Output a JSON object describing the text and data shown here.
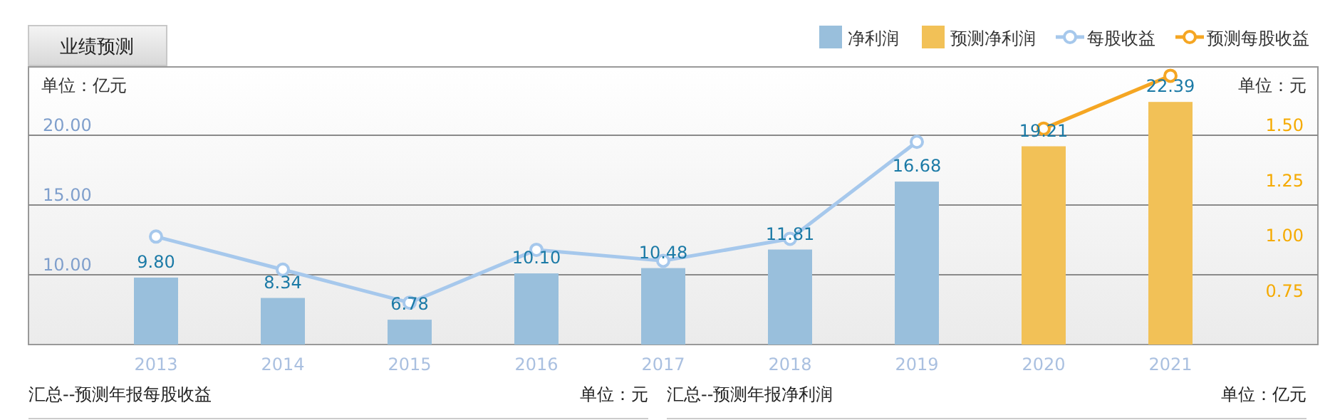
{
  "chart_data": {
    "type": "bar",
    "title": "业绩预测",
    "ylabel": "单位：亿元",
    "y2label": "单位：元",
    "categories": [
      "2013",
      "2014",
      "2015",
      "2016",
      "2017",
      "2018",
      "2019",
      "2020",
      "2021"
    ],
    "series": [
      {
        "name": "净利润",
        "color": "#99bfdc",
        "values": [
          9.8,
          8.34,
          6.78,
          10.1,
          10.48,
          11.81,
          16.68,
          null,
          null
        ],
        "value_labels": [
          "9.80",
          "8.34",
          "6.78",
          "10.10",
          "10.48",
          "11.81",
          "16.68",
          null,
          null
        ]
      },
      {
        "name": "预测净利润",
        "color": "#f2c157",
        "values": [
          null,
          null,
          null,
          null,
          null,
          null,
          null,
          19.21,
          22.39
        ],
        "value_labels": [
          null,
          null,
          null,
          null,
          null,
          null,
          null,
          "19.21",
          "22.39"
        ]
      },
      {
        "name": "每股收益",
        "type": "line",
        "axis": "y2",
        "color": "#a6c8ec",
        "values": [
          0.99,
          0.84,
          0.69,
          0.93,
          0.88,
          0.98,
          1.42,
          null,
          null
        ]
      },
      {
        "name": "预测每股收益",
        "type": "line",
        "axis": "y2",
        "color": "#f5a623",
        "values": [
          null,
          null,
          null,
          null,
          null,
          null,
          null,
          1.48,
          1.72
        ]
      }
    ],
    "ylim": [
      5,
      24.9
    ],
    "yticks": [
      {
        "value": 10,
        "label": "10.00"
      },
      {
        "value": 15,
        "label": "15.00"
      },
      {
        "value": 20,
        "label": "20.00"
      }
    ],
    "y2lim": [
      0.5,
      1.76
    ],
    "y2ticks": [
      {
        "value": 0.75,
        "label": "0.75"
      },
      {
        "value": 1.0,
        "label": "1.00"
      },
      {
        "value": 1.25,
        "label": "1.25"
      },
      {
        "value": 1.5,
        "label": "1.50"
      }
    ],
    "grid": "y",
    "legend": "top right",
    "marker": "circle",
    "annotations": [
      "汇总--预测年报每股收益",
      "单位：元",
      "汇总--预测年报净利润",
      "单位：亿元"
    ]
  }
}
